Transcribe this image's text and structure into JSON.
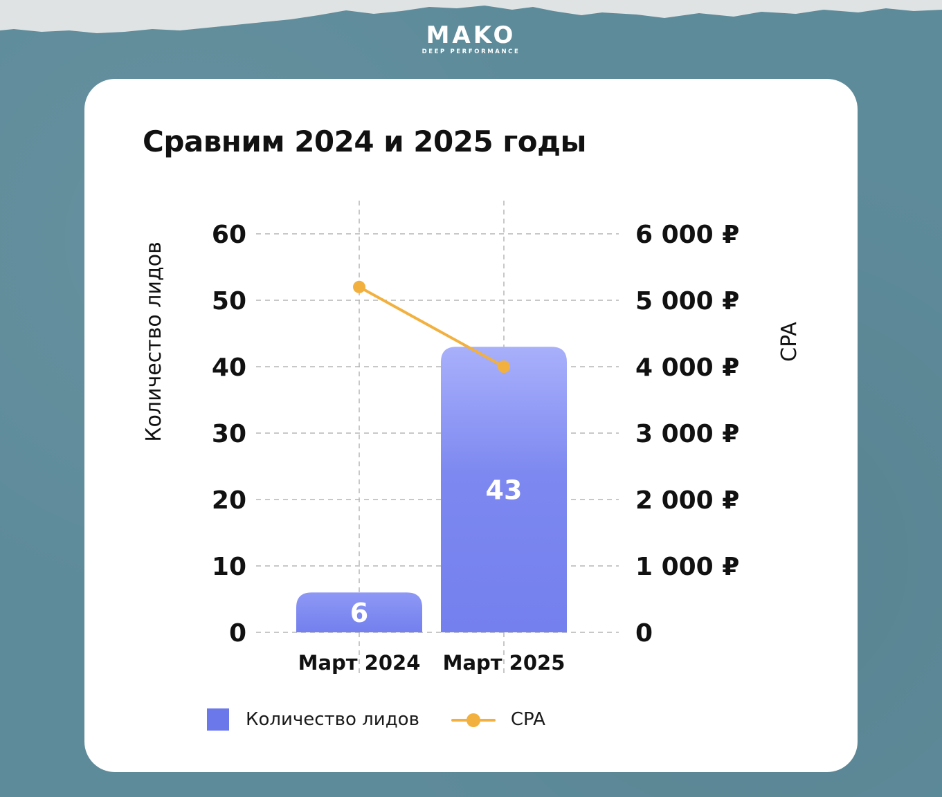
{
  "brand": {
    "name": "MAKO",
    "tagline": "DEEP PERFORMANCE"
  },
  "colors": {
    "background": "#5e8b9a",
    "card": "#ffffff",
    "bar": "#6b78ea",
    "bar_top": "#a8b0fb",
    "line": "#f2b13f",
    "grid": "#b5b5b5",
    "text": "#111111"
  },
  "chart_data": {
    "type": "bar",
    "title": "Сравним 2024 и 2025 годы",
    "categories": [
      "Март 2024",
      "Март 2025"
    ],
    "ylabel": "Количество лидов",
    "y2label": "CPA",
    "ylim": [
      0,
      60
    ],
    "y2lim": [
      0,
      6000
    ],
    "yticks": [
      "0",
      "10",
      "20",
      "30",
      "40",
      "50",
      "60"
    ],
    "y2ticks": [
      "0",
      "1 000 ₽",
      "2 000 ₽",
      "3 000 ₽",
      "4 000 ₽",
      "5 000 ₽",
      "6 000 ₽"
    ],
    "grid": true,
    "legend_position": "bottom-left",
    "series": [
      {
        "name": "Количество лидов",
        "kind": "bar",
        "axis": "left",
        "values": [
          6,
          43
        ],
        "data_labels": [
          "6",
          "43"
        ]
      },
      {
        "name": "CPA",
        "kind": "line",
        "axis": "right",
        "values": [
          5200,
          4000
        ]
      }
    ]
  }
}
